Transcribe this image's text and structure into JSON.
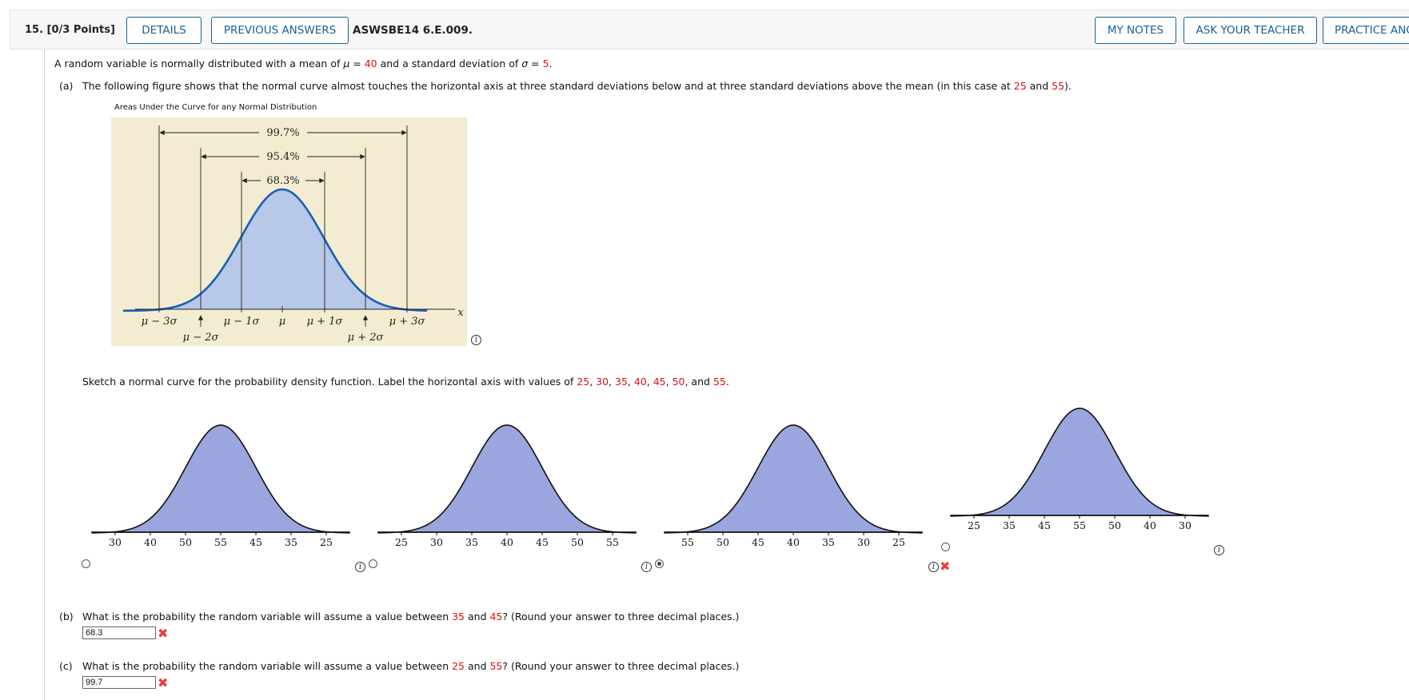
{
  "header": {
    "question_title": "15. [0/3 Points]",
    "details_label": "DETAILS",
    "previous_answers_label": "PREVIOUS ANSWERS",
    "question_id": "ASWSBE14 6.E.009.",
    "my_notes_label": "MY NOTES",
    "ask_teacher_label": "ASK YOUR TEACHER",
    "practice_label": "PRACTICE ANOTHER"
  },
  "intro": {
    "t1": "A random variable is normally distributed with a mean of ",
    "mu_symbol": "μ",
    "eq": " = ",
    "mean": "40",
    "t2": " and a standard deviation of ",
    "sigma_symbol": "σ",
    "sd": "5",
    "t3": "."
  },
  "part_a": {
    "label": "(a)",
    "t1": "The following figure shows that the normal curve almost touches the horizontal axis at three standard deviations below and at three standard deviations above the mean (in this case at ",
    "v1": "25",
    "and": " and ",
    "v2": "55",
    "t2": ").",
    "figure": {
      "caption": "Areas Under the Curve for any Normal Distribution",
      "p997": "99.7%",
      "p954": "95.4%",
      "p683": "68.3%",
      "lab_m3": "μ − 3σ",
      "lab_m2": "μ − 2σ",
      "lab_m1": "μ − 1σ",
      "lab_mu": "μ",
      "lab_p1": "μ + 1σ",
      "lab_p2": "μ + 2σ",
      "lab_p3": "μ + 3σ",
      "lab_x": "x",
      "colors": {
        "background": "#f3ecd1",
        "fill": "#b7c8e8",
        "curve": "#1a5fb4"
      }
    },
    "sketch_prompt": {
      "t1": "Sketch a normal curve for the probability density function. Label the horizontal axis with values of ",
      "values": [
        "25",
        "30",
        "35",
        "40",
        "45",
        "50",
        "55"
      ],
      "sep": ", ",
      "last_sep": ", and ",
      "end": "."
    },
    "options": [
      {
        "ticks": [
          "30",
          "40",
          "50",
          "55",
          "45",
          "35",
          "25"
        ],
        "selected": false
      },
      {
        "ticks": [
          "25",
          "30",
          "35",
          "40",
          "45",
          "50",
          "55"
        ],
        "selected": false
      },
      {
        "ticks": [
          "55",
          "50",
          "45",
          "40",
          "35",
          "30",
          "25"
        ],
        "selected": true
      },
      {
        "ticks": [
          "25",
          "35",
          "45",
          "55",
          "50",
          "40",
          "30"
        ],
        "selected": false
      }
    ],
    "option_fill_color": "#9aa6dd",
    "info_glyph": "i",
    "wrong_glyph": "✖"
  },
  "part_b": {
    "label": "(b)",
    "t1": "What is the probability the random variable will assume a value between ",
    "v1": "35",
    "and": " and ",
    "v2": "45",
    "t2": "? (Round your answer to three decimal places.)",
    "answer": "68.3"
  },
  "part_c": {
    "label": "(c)",
    "t1": "What is the probability the random variable will assume a value between ",
    "v1": "25",
    "and": " and ",
    "v2": "55",
    "t2": "? (Round your answer to three decimal places.)",
    "answer": "99.7"
  }
}
